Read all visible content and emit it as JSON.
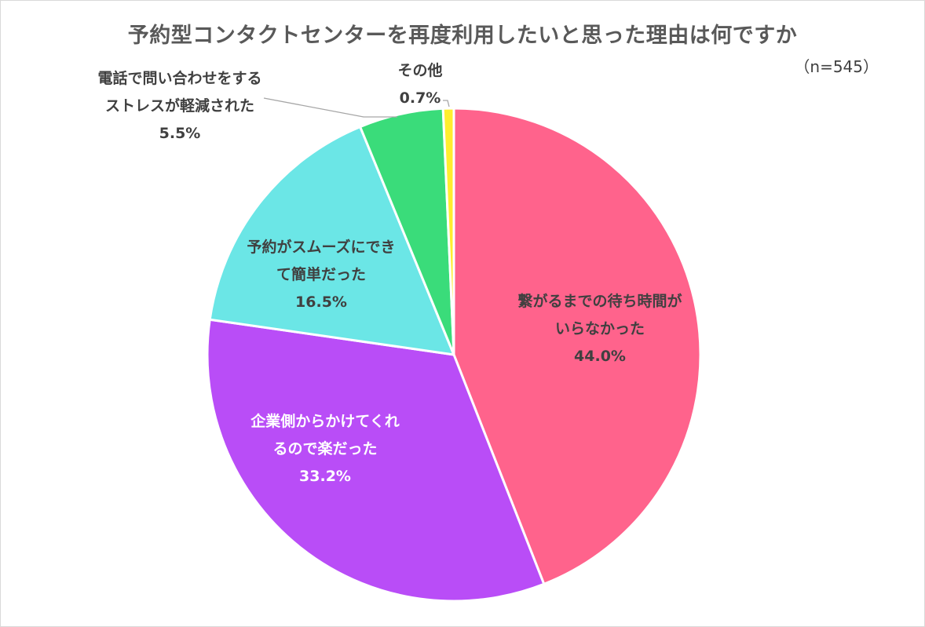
{
  "chart_data": {
    "type": "pie",
    "title": "予約型コンタクトセンターを再度利用したいと思った理由は何ですか",
    "subtitle": "（n=545）",
    "slices": [
      {
        "label_lines": [
          "繋がるまでの待ち時間が",
          "いらなかった"
        ],
        "value": 44.0,
        "value_label": "44.0%",
        "color": "#FF638C"
      },
      {
        "label_lines": [
          "企業側からかけてくれ",
          "るので楽だった"
        ],
        "value": 33.2,
        "value_label": "33.2%",
        "color": "#B94DF7"
      },
      {
        "label_lines": [
          "予約がスムーズにでき",
          "て簡単だった"
        ],
        "value": 16.5,
        "value_label": "16.5%",
        "color": "#6BE6E6"
      },
      {
        "label_lines": [
          "電話で問い合わせをする",
          "ストレスが軽減された"
        ],
        "value": 5.5,
        "value_label": "5.5%",
        "color": "#3ADC7A"
      },
      {
        "label_lines": [
          "その他"
        ],
        "value": 0.7,
        "value_label": "0.7%",
        "color": "#FFEE2E"
      }
    ]
  }
}
